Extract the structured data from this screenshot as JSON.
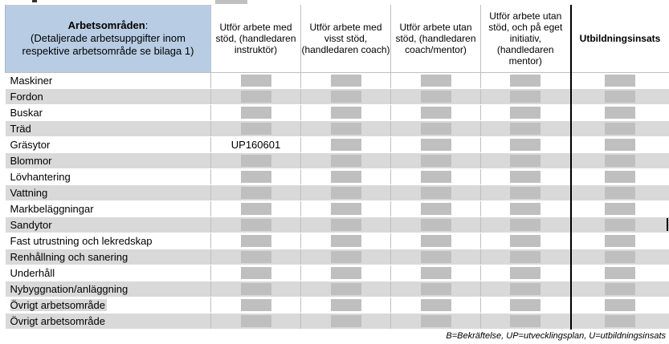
{
  "header": {
    "area_title": "Arbetsområden",
    "area_colon": ":",
    "area_subtitle": "(Detaljerade arbetsuppgifter inom respektive arbetsområde se bilaga 1)",
    "columns": [
      "Utför arbete med stöd, (handledaren instruktör)",
      "Utför arbete med visst stöd, (handledaren coach)",
      "Utför arbete utan stöd, (handledaren coach/mentor)",
      "Utför arbete utan stöd, och på eget initiativ, (handledaren mentor)"
    ],
    "education_column": "Utbildningsinsats"
  },
  "rows": [
    {
      "label": "Maskiner",
      "values": [
        "",
        "",
        "",
        ""
      ],
      "education": ""
    },
    {
      "label": "Fordon",
      "values": [
        "",
        "",
        "",
        ""
      ],
      "education": ""
    },
    {
      "label": "Buskar",
      "values": [
        "",
        "",
        "",
        ""
      ],
      "education": ""
    },
    {
      "label": "Träd",
      "values": [
        "",
        "",
        "",
        ""
      ],
      "education": ""
    },
    {
      "label": "Gräsytor",
      "values": [
        "UP160601",
        "",
        "",
        ""
      ],
      "education": ""
    },
    {
      "label": "Blommor",
      "values": [
        "",
        "",
        "",
        ""
      ],
      "education": ""
    },
    {
      "label": "Lövhantering",
      "values": [
        "",
        "",
        "",
        ""
      ],
      "education": ""
    },
    {
      "label": "Vattning",
      "values": [
        "",
        "",
        "",
        ""
      ],
      "education": ""
    },
    {
      "label": "Markbeläggningar",
      "values": [
        "",
        "",
        "",
        ""
      ],
      "education": ""
    },
    {
      "label": "Sandytor",
      "values": [
        "",
        "",
        "",
        ""
      ],
      "education": ""
    },
    {
      "label": "Fast utrustning och lekredskap",
      "values": [
        "",
        "",
        "",
        ""
      ],
      "education": ""
    },
    {
      "label": "Renhållning och sanering",
      "values": [
        "",
        "",
        "",
        ""
      ],
      "education": ""
    },
    {
      "label": "Underhåll",
      "values": [
        "",
        "",
        "",
        ""
      ],
      "education": ""
    },
    {
      "label": "Nybyggnation/anläggning",
      "values": [
        "",
        "",
        "",
        ""
      ],
      "education": ""
    },
    {
      "label": "Övrigt arbetsområde",
      "values": [
        "",
        "",
        "",
        ""
      ],
      "education": "",
      "label_field": true
    },
    {
      "label": "Övrigt arbetsområde",
      "values": [
        "",
        "",
        "",
        ""
      ],
      "education": "",
      "label_field": true
    }
  ],
  "footnote": "B=Bekräftelse, UP=utvecklingsplan, U=utbildningsinsats",
  "colors": {
    "header_fill": "#b8cce4",
    "row_shade": "#d9d9d9",
    "form_field": "#bfbfbf"
  }
}
